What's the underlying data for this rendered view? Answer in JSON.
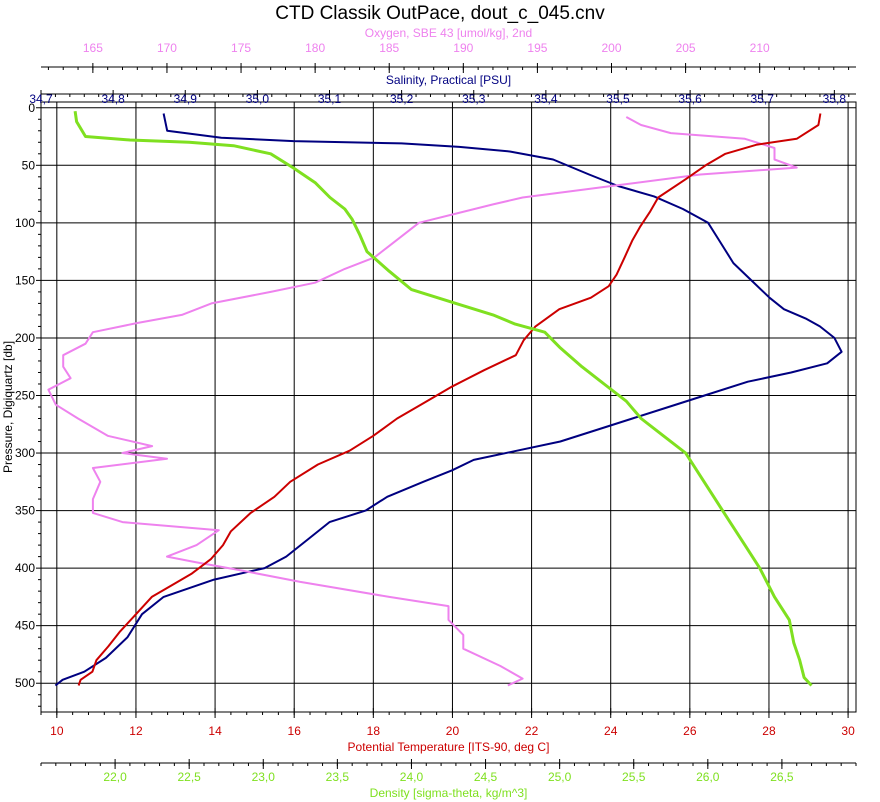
{
  "chart_data": {
    "type": "line",
    "title": "CTD Classik OutPace, dout_c_045.cnv",
    "grid": true,
    "y_axis": {
      "label": "Pressure, Digiquartz [db]",
      "range": [
        525,
        -5
      ],
      "ticks": [
        0,
        50,
        100,
        150,
        200,
        250,
        300,
        350,
        400,
        450,
        500
      ],
      "tick_labels": [
        "0",
        "50",
        "100",
        "150",
        "200",
        "250",
        "300",
        "350",
        "400",
        "450",
        "500"
      ]
    },
    "x_axes": [
      {
        "key": "oxygen",
        "label": "Oxygen, SBE 43 [umol/kg], 2nd",
        "color": "#ee82ee",
        "range": [
          161.5,
          216.5
        ],
        "ticks": [
          165,
          170,
          175,
          180,
          185,
          190,
          195,
          200,
          205,
          210
        ],
        "tick_labels": [
          "165",
          "170",
          "175",
          "180",
          "185",
          "190",
          "195",
          "200",
          "205",
          "210"
        ]
      },
      {
        "key": "salinity",
        "label": "Salinity, Practical [PSU]",
        "color": "#000080",
        "range": [
          34.7,
          35.83
        ],
        "ticks": [
          34.7,
          34.8,
          34.9,
          35.0,
          35.1,
          35.2,
          35.3,
          35.4,
          35.5,
          35.6,
          35.7,
          35.8
        ],
        "tick_labels": [
          "34,7",
          "34,8",
          "34,9",
          "35,0",
          "35,1",
          "35,2",
          "35,3",
          "35,4",
          "35,5",
          "35,6",
          "35,7",
          "35,8"
        ]
      },
      {
        "key": "temperature",
        "label": "Potential Temperature [ITS-90, deg C]",
        "color": "#cc0000",
        "range": [
          9.6,
          30.2
        ],
        "ticks": [
          10,
          12,
          14,
          16,
          18,
          20,
          22,
          24,
          26,
          28,
          30
        ],
        "tick_labels": [
          "10",
          "12",
          "14",
          "16",
          "18",
          "20",
          "22",
          "24",
          "26",
          "28",
          "30"
        ]
      },
      {
        "key": "density",
        "label": "Density [sigma-theta, kg/m^3]",
        "color": "#7fe020",
        "range": [
          21.5,
          27.0
        ],
        "ticks": [
          22.0,
          22.5,
          23.0,
          23.5,
          24.0,
          24.5,
          25.0,
          25.5,
          26.0,
          26.5
        ],
        "tick_labels": [
          "22,0",
          "22,5",
          "23,0",
          "23,5",
          "24,0",
          "24,5",
          "25,0",
          "25,5",
          "26,0",
          "26,5"
        ]
      }
    ],
    "series": [
      {
        "name": "Salinity, Practical [PSU]",
        "axis": "salinity",
        "color": "#000080",
        "points": [
          [
            34.87,
            5
          ],
          [
            34.875,
            20
          ],
          [
            34.95,
            26
          ],
          [
            35.05,
            29
          ],
          [
            35.2,
            31
          ],
          [
            35.28,
            34
          ],
          [
            35.35,
            38
          ],
          [
            35.41,
            45
          ],
          [
            35.46,
            58
          ],
          [
            35.5,
            68
          ],
          [
            35.55,
            77
          ],
          [
            35.59,
            88
          ],
          [
            35.625,
            100
          ],
          [
            35.64,
            115
          ],
          [
            35.66,
            135
          ],
          [
            35.685,
            150
          ],
          [
            35.71,
            165
          ],
          [
            35.73,
            175
          ],
          [
            35.76,
            183
          ],
          [
            35.78,
            190
          ],
          [
            35.8,
            200
          ],
          [
            35.81,
            212
          ],
          [
            35.79,
            222
          ],
          [
            35.74,
            230
          ],
          [
            35.68,
            238
          ],
          [
            35.62,
            250
          ],
          [
            35.57,
            260
          ],
          [
            35.52,
            270
          ],
          [
            35.47,
            280
          ],
          [
            35.42,
            290
          ],
          [
            35.36,
            298
          ],
          [
            35.3,
            306
          ],
          [
            35.27,
            315
          ],
          [
            35.23,
            325
          ],
          [
            35.18,
            338
          ],
          [
            35.15,
            350
          ],
          [
            35.1,
            360
          ],
          [
            35.07,
            375
          ],
          [
            35.04,
            390
          ],
          [
            35.01,
            400
          ],
          [
            34.94,
            410
          ],
          [
            34.87,
            425
          ],
          [
            34.84,
            440
          ],
          [
            34.82,
            460
          ],
          [
            34.79,
            478
          ],
          [
            34.76,
            490
          ],
          [
            34.73,
            497
          ],
          [
            34.72,
            502
          ]
        ]
      },
      {
        "name": "Oxygen, SBE 43 [umol/kg], 2nd",
        "axis": "oxygen",
        "color": "#ee82ee",
        "points": [
          [
            201,
            8
          ],
          [
            202,
            15
          ],
          [
            204,
            22
          ],
          [
            209,
            27
          ],
          [
            211,
            35
          ],
          [
            211,
            45
          ],
          [
            212.5,
            52
          ],
          [
            206,
            58
          ],
          [
            200,
            68
          ],
          [
            194,
            78
          ],
          [
            192,
            84
          ],
          [
            189.5,
            92
          ],
          [
            187,
            100
          ],
          [
            186,
            110
          ],
          [
            185,
            120
          ],
          [
            184,
            130
          ],
          [
            182,
            140
          ],
          [
            180,
            152
          ],
          [
            177,
            160
          ],
          [
            173,
            170
          ],
          [
            171,
            180
          ],
          [
            168,
            187
          ],
          [
            165,
            195
          ],
          [
            164.5,
            205
          ],
          [
            163,
            215
          ],
          [
            163,
            225
          ],
          [
            163.5,
            235
          ],
          [
            162,
            245
          ],
          [
            162.5,
            258
          ],
          [
            164,
            270
          ],
          [
            166,
            285
          ],
          [
            169,
            294
          ],
          [
            167,
            300
          ],
          [
            170,
            305
          ],
          [
            165,
            313
          ],
          [
            165.5,
            325
          ],
          [
            165,
            340
          ],
          [
            165,
            352
          ],
          [
            167,
            360
          ],
          [
            173.5,
            367
          ],
          [
            172,
            380
          ],
          [
            170,
            390
          ],
          [
            172,
            395
          ],
          [
            175,
            402
          ],
          [
            179,
            412
          ],
          [
            185,
            425
          ],
          [
            189,
            433
          ],
          [
            189,
            445
          ],
          [
            190,
            458
          ],
          [
            190,
            470
          ],
          [
            192.5,
            485
          ],
          [
            194,
            496
          ],
          [
            193,
            502
          ]
        ]
      },
      {
        "name": "Potential Temperature [ITS-90, deg C]",
        "axis": "temperature",
        "color": "#cc0000",
        "points": [
          [
            29.3,
            5
          ],
          [
            29.25,
            15
          ],
          [
            28.7,
            27
          ],
          [
            27.7,
            32
          ],
          [
            26.9,
            40
          ],
          [
            26.4,
            50
          ],
          [
            25.9,
            62
          ],
          [
            25.2,
            78
          ],
          [
            25.0,
            90
          ],
          [
            24.75,
            103
          ],
          [
            24.55,
            115
          ],
          [
            24.35,
            130
          ],
          [
            24.15,
            145
          ],
          [
            23.95,
            155
          ],
          [
            23.5,
            165
          ],
          [
            22.7,
            175
          ],
          [
            22.1,
            190
          ],
          [
            21.8,
            202
          ],
          [
            21.6,
            215
          ],
          [
            20.8,
            228
          ],
          [
            20.0,
            242
          ],
          [
            19.2,
            258
          ],
          [
            18.6,
            270
          ],
          [
            18.0,
            285
          ],
          [
            17.4,
            298
          ],
          [
            16.6,
            310
          ],
          [
            15.9,
            325
          ],
          [
            15.5,
            338
          ],
          [
            14.9,
            352
          ],
          [
            14.4,
            368
          ],
          [
            14.2,
            380
          ],
          [
            13.9,
            392
          ],
          [
            13.4,
            405
          ],
          [
            12.9,
            415
          ],
          [
            12.4,
            425
          ],
          [
            12.0,
            440
          ],
          [
            11.6,
            455
          ],
          [
            11.3,
            468
          ],
          [
            11.0,
            480
          ],
          [
            10.9,
            490
          ],
          [
            10.6,
            497
          ],
          [
            10.55,
            502
          ]
        ]
      },
      {
        "name": "Density [sigma-theta, kg/m^3]",
        "axis": "density",
        "color": "#7fe020",
        "points": [
          [
            21.73,
            3
          ],
          [
            21.74,
            12
          ],
          [
            21.8,
            25
          ],
          [
            22.1,
            28
          ],
          [
            22.5,
            30
          ],
          [
            22.8,
            33
          ],
          [
            23.05,
            40
          ],
          [
            23.2,
            52
          ],
          [
            23.35,
            65
          ],
          [
            23.45,
            78
          ],
          [
            23.55,
            88
          ],
          [
            23.6,
            97
          ],
          [
            23.65,
            110
          ],
          [
            23.7,
            125
          ],
          [
            23.85,
            142
          ],
          [
            24.0,
            158
          ],
          [
            24.3,
            170
          ],
          [
            24.55,
            180
          ],
          [
            24.7,
            188
          ],
          [
            24.9,
            195
          ],
          [
            25.0,
            208
          ],
          [
            25.15,
            225
          ],
          [
            25.3,
            240
          ],
          [
            25.45,
            255
          ],
          [
            25.55,
            270
          ],
          [
            25.7,
            285
          ],
          [
            25.85,
            300
          ],
          [
            25.95,
            320
          ],
          [
            26.05,
            340
          ],
          [
            26.15,
            360
          ],
          [
            26.25,
            380
          ],
          [
            26.35,
            400
          ],
          [
            26.45,
            425
          ],
          [
            26.55,
            445
          ],
          [
            26.58,
            465
          ],
          [
            26.62,
            480
          ],
          [
            26.65,
            495
          ],
          [
            26.7,
            502
          ]
        ]
      }
    ]
  }
}
